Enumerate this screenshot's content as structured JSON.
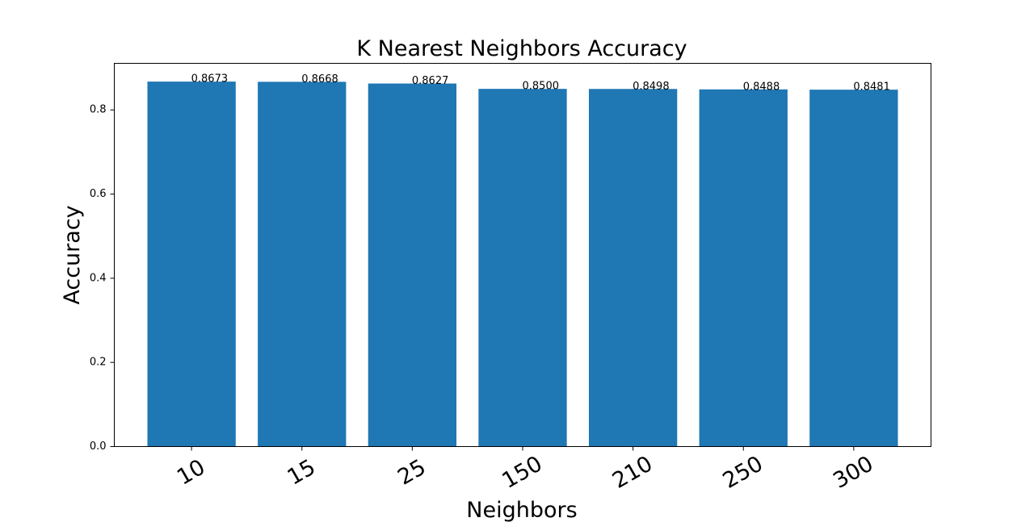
{
  "chart_data": {
    "type": "bar",
    "title": "K Nearest Neighbors Accuracy",
    "xlabel": "Neighbors",
    "ylabel": "Accuracy",
    "categories": [
      "10",
      "15",
      "25",
      "150",
      "210",
      "250",
      "300"
    ],
    "values": [
      0.8673,
      0.8668,
      0.8627,
      0.85,
      0.8498,
      0.8488,
      0.8481
    ],
    "data_labels": [
      "0.8673",
      "0.8668",
      "0.8627",
      "0.8500",
      "0.8498",
      "0.8488",
      "0.8481"
    ],
    "yticks": [
      0.0,
      0.2,
      0.4,
      0.6,
      0.8
    ],
    "ytick_labels": [
      "0.0",
      "0.2",
      "0.4",
      "0.6",
      "0.8"
    ],
    "ylim": [
      0,
      0.9107
    ],
    "xtick_rotation_deg": 30,
    "bar_color": "#1f77b4",
    "grid": false,
    "legend": "none"
  }
}
